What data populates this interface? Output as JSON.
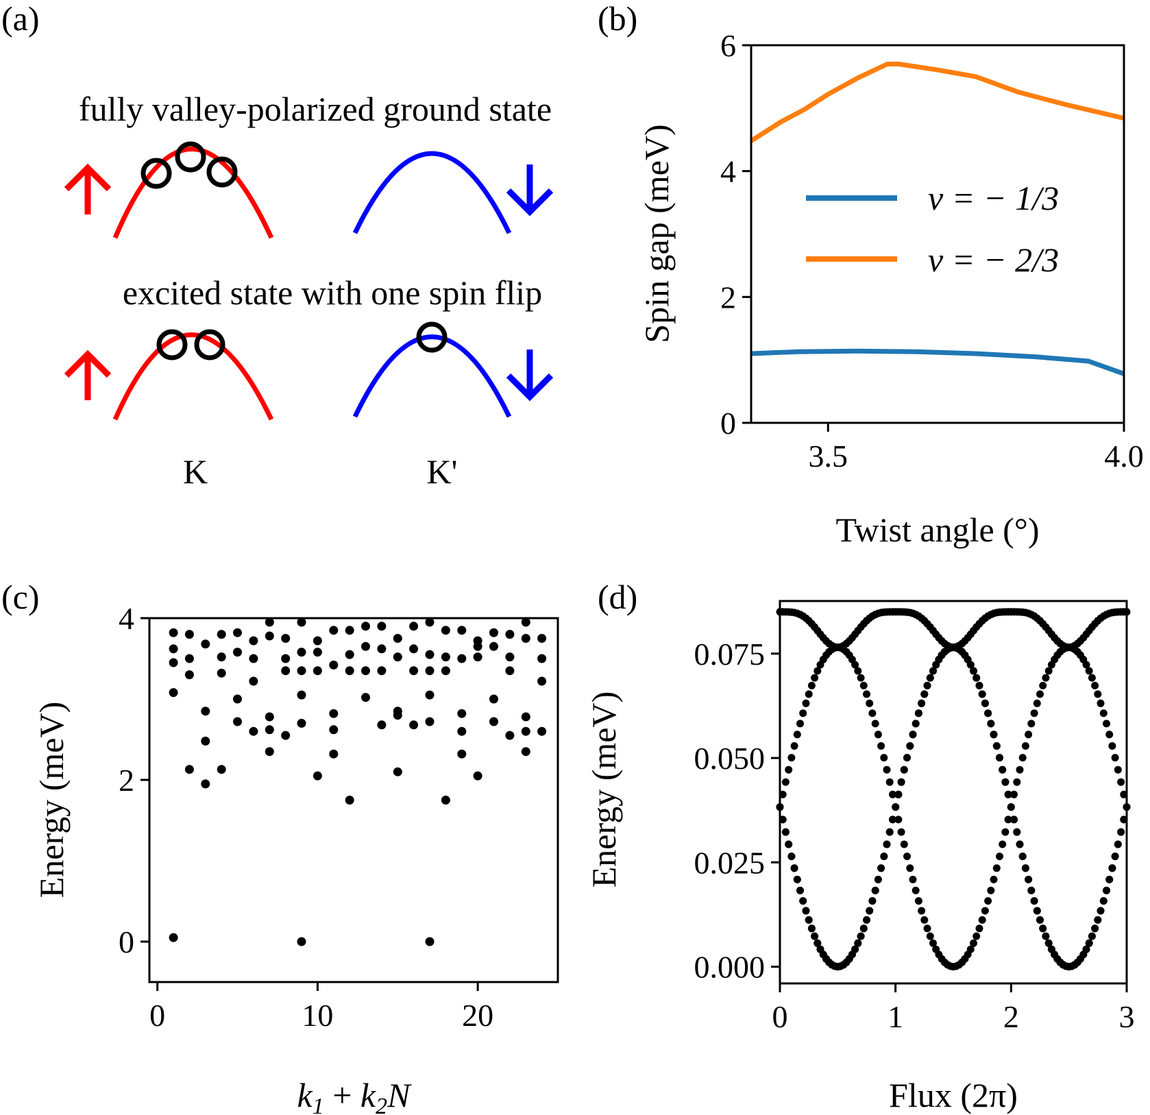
{
  "panel_labels": {
    "a": "(a)",
    "b": "(b)",
    "c": "(c)",
    "d": "(d)"
  },
  "diagram": {
    "top_caption": "fully valley-polarized ground state",
    "bottom_caption": "excited state with one spin flip",
    "valley_K": "K",
    "valley_Kp": "K'",
    "colors": {
      "spin_up": "#ff0000",
      "spin_down": "#0000ff",
      "hole": "#000000"
    },
    "states": [
      {
        "name": "ground",
        "K_holes": 3,
        "Kp_holes": 0
      },
      {
        "name": "excited",
        "K_holes": 2,
        "Kp_holes": 1
      }
    ],
    "icons": {
      "spin_up": "up-arrow-icon",
      "spin_down": "down-arrow-icon"
    }
  },
  "chart_data": [
    {
      "id": "b",
      "type": "line",
      "xlabel": "Twist angle (°)",
      "ylabel": "Spin gap (meV)",
      "xlim": [
        3.37,
        4.0
      ],
      "ylim": [
        0,
        6
      ],
      "xticks": [
        3.5,
        4.0
      ],
      "xtick_labels": [
        "3.5",
        "4.0"
      ],
      "yticks": [
        0,
        2,
        4,
        6
      ],
      "ytick_labels": [
        "0",
        "2",
        "4",
        "6"
      ],
      "legend_position": "center-right",
      "series": [
        {
          "name": "ν = −1/3",
          "legend_label": "ν = − 1/3",
          "color": "#1f77b4",
          "x": [
            3.37,
            3.45,
            3.55,
            3.65,
            3.75,
            3.85,
            3.94,
            4.0
          ],
          "y": [
            1.1,
            1.13,
            1.14,
            1.13,
            1.1,
            1.05,
            0.98,
            0.78
          ]
        },
        {
          "name": "ν = −2/3",
          "legend_label": "ν = − 2/3",
          "color": "#ff7f0e",
          "x": [
            3.37,
            3.42,
            3.46,
            3.5,
            3.55,
            3.6,
            3.62,
            3.69,
            3.75,
            3.82,
            3.9,
            4.0
          ],
          "y": [
            4.48,
            4.78,
            4.98,
            5.22,
            5.48,
            5.7,
            5.7,
            5.6,
            5.5,
            5.26,
            5.06,
            4.84
          ]
        }
      ]
    },
    {
      "id": "c",
      "type": "scatter",
      "xlabel_parts": [
        "k",
        "1",
        " + ",
        "k",
        "2",
        "N"
      ],
      "ylabel": "Energy (meV)",
      "xlim": [
        -0.5,
        25.0
      ],
      "ylim": [
        -0.5,
        4.0
      ],
      "xticks": [
        0,
        10,
        20
      ],
      "xtick_labels": [
        "0",
        "10",
        "20"
      ],
      "yticks": [
        0,
        2,
        4
      ],
      "ytick_labels": [
        "0",
        "2",
        "4"
      ],
      "marker_color": "#000000",
      "x": [
        1,
        1,
        1,
        1,
        1,
        2,
        2,
        2,
        2,
        3,
        3,
        3,
        3,
        4,
        4,
        4,
        4,
        5,
        5,
        5,
        5,
        6,
        6,
        6,
        6,
        7,
        7,
        7,
        7,
        7,
        8,
        8,
        8,
        8,
        9,
        9,
        9,
        9,
        9,
        9,
        10,
        10,
        10,
        10,
        11,
        11,
        11,
        11,
        11,
        12,
        12,
        12,
        12,
        13,
        13,
        13,
        13,
        14,
        14,
        14,
        14,
        15,
        15,
        15,
        15,
        15,
        16,
        16,
        16,
        16,
        17,
        17,
        17,
        17,
        17,
        17,
        18,
        18,
        18,
        18,
        19,
        19,
        19,
        19,
        19,
        20,
        20,
        20,
        20,
        21,
        21,
        21,
        21,
        22,
        22,
        22,
        22,
        23,
        23,
        23,
        23,
        23,
        24,
        24,
        24,
        24
      ],
      "y": [
        0.05,
        3.08,
        3.45,
        3.62,
        3.82,
        2.13,
        3.3,
        3.5,
        3.8,
        1.95,
        2.48,
        2.85,
        3.68,
        2.13,
        3.32,
        3.52,
        3.8,
        2.72,
        3.0,
        3.58,
        3.82,
        2.6,
        3.22,
        3.5,
        3.72,
        2.35,
        2.62,
        2.78,
        3.78,
        3.95,
        2.55,
        3.35,
        3.5,
        3.75,
        0.0,
        2.7,
        3.05,
        3.35,
        3.58,
        3.95,
        2.05,
        3.35,
        3.58,
        3.72,
        2.32,
        2.62,
        2.82,
        3.42,
        3.85,
        1.75,
        3.35,
        3.55,
        3.85,
        3.02,
        3.35,
        3.65,
        3.9,
        2.68,
        3.35,
        3.62,
        3.9,
        2.1,
        2.8,
        2.85,
        3.52,
        3.75,
        2.68,
        3.35,
        3.62,
        3.9,
        0.0,
        2.72,
        3.05,
        3.35,
        3.55,
        3.95,
        1.75,
        3.35,
        3.52,
        3.85,
        2.32,
        2.6,
        2.82,
        3.5,
        3.85,
        2.05,
        3.52,
        3.65,
        3.72,
        2.72,
        3.0,
        3.65,
        3.82,
        2.55,
        3.35,
        3.52,
        3.8,
        2.35,
        2.6,
        2.78,
        3.75,
        3.95,
        2.6,
        3.22,
        3.5,
        3.75
      ]
    },
    {
      "id": "d",
      "type": "scatter",
      "xlabel": "Flux (2π)",
      "ylabel": "Energy (meV)",
      "xlim": [
        0,
        3
      ],
      "ylim": [
        -0.004,
        0.0876
      ],
      "xticks": [
        0,
        1,
        2,
        3
      ],
      "xtick_labels": [
        "0",
        "1",
        "2",
        "3"
      ],
      "yticks": [
        0.0,
        0.025,
        0.05,
        0.075
      ],
      "ytick_labels": [
        "0.000",
        "0.025",
        "0.050",
        "0.075"
      ],
      "marker_color": "#000000",
      "points_per_unit_flux": 40,
      "bands": [
        {
          "kind": "upper",
          "period": 1,
          "min_at": 0.5,
          "emin": 0.0765,
          "emax": 0.085
        },
        {
          "kind": "lower",
          "min_at": 0.5,
          "emax": 0.0765,
          "shift": 0
        },
        {
          "kind": "lower",
          "min_at": 0.5,
          "emax": 0.0765,
          "shift": 1
        },
        {
          "kind": "lower",
          "min_at": 0.5,
          "emax": 0.0765,
          "shift": 2
        }
      ]
    }
  ]
}
